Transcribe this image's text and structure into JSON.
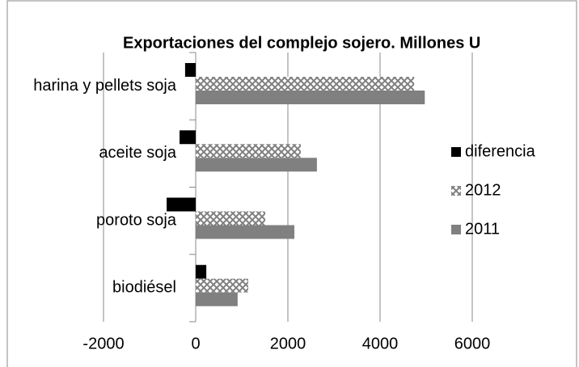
{
  "chart_data": {
    "type": "barh",
    "title": "Exportaciones del complejo sojero. Millones U",
    "categories": [
      "biodiésel",
      "poroto soja",
      "aceite soja",
      "harina y pellets soja"
    ],
    "series": [
      {
        "name": "diferencia",
        "color": "#000000",
        "values": [
          230,
          -630,
          -350,
          -230
        ]
      },
      {
        "name": "2012",
        "color": "hatch",
        "values": [
          1140,
          1510,
          2280,
          4740
        ]
      },
      {
        "name": "2011",
        "color": "#808080",
        "values": [
          910,
          2140,
          2630,
          4970
        ]
      }
    ],
    "xlim": [
      -2000,
      6000
    ],
    "xticks": [
      -2000,
      0,
      2000,
      4000,
      6000
    ],
    "grid": true,
    "legend": "right"
  }
}
